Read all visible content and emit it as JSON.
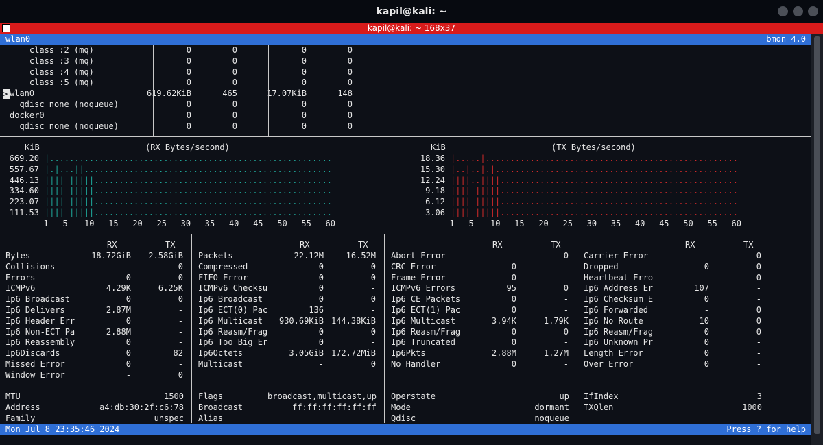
{
  "window": {
    "title": "kapil@kali: ~",
    "tab_title": "kapil@kali: ~ 168x37"
  },
  "header": {
    "interface": "wlan0",
    "app": "bmon 4.0"
  },
  "iface_list": [
    {
      "name": "    class :2 (mq)",
      "rx_bytes": "0",
      "rx_pkts": "0",
      "tx_bytes": "0",
      "tx_pkts": "0"
    },
    {
      "name": "    class :3 (mq)",
      "rx_bytes": "0",
      "rx_pkts": "0",
      "tx_bytes": "0",
      "tx_pkts": "0"
    },
    {
      "name": "    class :4 (mq)",
      "rx_bytes": "0",
      "rx_pkts": "0",
      "tx_bytes": "0",
      "tx_pkts": "0"
    },
    {
      "name": "    class :5 (mq)",
      "rx_bytes": "0",
      "rx_pkts": "0",
      "tx_bytes": "0",
      "tx_pkts": "0"
    },
    {
      "name": "wlan0",
      "rx_bytes": "619.62KiB",
      "rx_pkts": "465",
      "tx_bytes": "17.07KiB",
      "tx_pkts": "148"
    },
    {
      "name": "  qdisc none (noqueue)",
      "rx_bytes": "0",
      "rx_pkts": "0",
      "tx_bytes": "0",
      "tx_pkts": "0"
    },
    {
      "name": "docker0",
      "rx_bytes": "0",
      "rx_pkts": "0",
      "tx_bytes": "0",
      "tx_pkts": "0"
    },
    {
      "name": "  qdisc none (noqueue)",
      "rx_bytes": "0",
      "rx_pkts": "0",
      "tx_bytes": "0",
      "tx_pkts": "0"
    }
  ],
  "cursor_marker": ">",
  "chart_data": [
    {
      "type": "bar",
      "title": "(RX Bytes/second)",
      "unit": "KiB",
      "y_ticks": [
        "669.20",
        "557.67",
        "446.13",
        "334.60",
        "223.07",
        "111.53"
      ],
      "x_ticks": [
        "1",
        "5",
        "10",
        "15",
        "20",
        "25",
        "30",
        "35",
        "40",
        "45",
        "50",
        "55",
        "60"
      ],
      "rows": [
        "|.........................................................",
        "|.|...||..................................................",
        "||||||||||................................................",
        "||||||||||................................................",
        "||||||||||................................................",
        "||||||||||................................................"
      ],
      "color": "#1fa89a"
    },
    {
      "type": "bar",
      "title": "(TX Bytes/second)",
      "unit": "KiB",
      "y_ticks": [
        "18.36",
        "15.30",
        "12.24",
        "9.18",
        "6.12",
        "3.06"
      ],
      "x_ticks": [
        "1",
        "5",
        "10",
        "15",
        "20",
        "25",
        "30",
        "35",
        "40",
        "45",
        "50",
        "55",
        "60"
      ],
      "rows": [
        "|.....|...................................................",
        "|..|..|.|.................................................",
        "||||..||||................................................",
        "||||||||||................................................",
        "||||||||||................................................",
        "||||||||||................................................"
      ],
      "color": "#d22a2a"
    }
  ],
  "stats": {
    "rx_label": "RX",
    "tx_label": "TX",
    "col1": [
      {
        "name": "Bytes",
        "rx": "18.72GiB",
        "tx": "2.58GiB"
      },
      {
        "name": "Collisions",
        "rx": "-",
        "tx": "0"
      },
      {
        "name": "Errors",
        "rx": "0",
        "tx": "0"
      },
      {
        "name": "ICMPv6",
        "rx": "4.29K",
        "tx": "6.25K"
      },
      {
        "name": "Ip6 Broadcast",
        "rx": "0",
        "tx": "0"
      },
      {
        "name": "Ip6 Delivers",
        "rx": "2.87M",
        "tx": "-"
      },
      {
        "name": "Ip6 Header Err",
        "rx": "0",
        "tx": "-"
      },
      {
        "name": "Ip6 Non-ECT Pa",
        "rx": "2.88M",
        "tx": "-"
      },
      {
        "name": "Ip6 Reassembly",
        "rx": "0",
        "tx": "-"
      },
      {
        "name": "Ip6Discards",
        "rx": "0",
        "tx": "82"
      },
      {
        "name": "Missed Error",
        "rx": "0",
        "tx": "-"
      },
      {
        "name": "Window Error",
        "rx": "-",
        "tx": "0"
      }
    ],
    "col2": [
      {
        "name": "Packets",
        "rx": "22.12M",
        "tx": "16.52M"
      },
      {
        "name": "Compressed",
        "rx": "0",
        "tx": "0"
      },
      {
        "name": "FIFO Error",
        "rx": "0",
        "tx": "0"
      },
      {
        "name": "ICMPv6 Checksu",
        "rx": "0",
        "tx": "-"
      },
      {
        "name": "Ip6 Broadcast",
        "rx": "0",
        "tx": "0"
      },
      {
        "name": "Ip6 ECT(0) Pac",
        "rx": "136",
        "tx": "-"
      },
      {
        "name": "Ip6 Multicast",
        "rx": "930.69KiB",
        "tx": "144.38KiB"
      },
      {
        "name": "Ip6 Reasm/Frag",
        "rx": "0",
        "tx": "0"
      },
      {
        "name": "Ip6 Too Big Er",
        "rx": "0",
        "tx": "-"
      },
      {
        "name": "Ip6Octets",
        "rx": "3.05GiB",
        "tx": "172.72MiB"
      },
      {
        "name": "Multicast",
        "rx": "-",
        "tx": "0"
      }
    ],
    "col3": [
      {
        "name": "Abort Error",
        "rx": "-",
        "tx": "0"
      },
      {
        "name": "CRC Error",
        "rx": "0",
        "tx": "-"
      },
      {
        "name": "Frame Error",
        "rx": "0",
        "tx": "-"
      },
      {
        "name": "ICMPv6 Errors",
        "rx": "95",
        "tx": "0"
      },
      {
        "name": "Ip6 CE Packets",
        "rx": "0",
        "tx": "-"
      },
      {
        "name": "Ip6 ECT(1) Pac",
        "rx": "0",
        "tx": "-"
      },
      {
        "name": "Ip6 Multicast",
        "rx": "3.94K",
        "tx": "1.79K"
      },
      {
        "name": "Ip6 Reasm/Frag",
        "rx": "0",
        "tx": "0"
      },
      {
        "name": "Ip6 Truncated",
        "rx": "0",
        "tx": "-"
      },
      {
        "name": "Ip6Pkts",
        "rx": "2.88M",
        "tx": "1.27M"
      },
      {
        "name": "No Handler",
        "rx": "0",
        "tx": "-"
      }
    ],
    "col4": [
      {
        "name": "Carrier Error",
        "rx": "-",
        "tx": "0"
      },
      {
        "name": "Dropped",
        "rx": "0",
        "tx": "0"
      },
      {
        "name": "Heartbeat Erro",
        "rx": "-",
        "tx": "0"
      },
      {
        "name": "Ip6 Address Er",
        "rx": "107",
        "tx": "-"
      },
      {
        "name": "Ip6 Checksum E",
        "rx": "0",
        "tx": "-"
      },
      {
        "name": "Ip6 Forwarded",
        "rx": "-",
        "tx": "0"
      },
      {
        "name": "Ip6 No Route",
        "rx": "10",
        "tx": "0"
      },
      {
        "name": "Ip6 Reasm/Frag",
        "rx": "0",
        "tx": "0"
      },
      {
        "name": "Ip6 Unknown Pr",
        "rx": "0",
        "tx": "-"
      },
      {
        "name": "Length Error",
        "rx": "0",
        "tx": "-"
      },
      {
        "name": "Over Error",
        "rx": "0",
        "tx": "-"
      }
    ]
  },
  "info": {
    "col1": [
      {
        "k": "MTU",
        "v": "1500"
      },
      {
        "k": "Address",
        "v": "a4:db:30:2f:c6:78"
      },
      {
        "k": "Family",
        "v": "unspec"
      }
    ],
    "col2": [
      {
        "k": "Flags",
        "v": "broadcast,multicast,up"
      },
      {
        "k": "Broadcast",
        "v": "ff:ff:ff:ff:ff:ff"
      },
      {
        "k": "Alias",
        "v": ""
      }
    ],
    "col3": [
      {
        "k": "Operstate",
        "v": "up"
      },
      {
        "k": "Mode",
        "v": "dormant"
      },
      {
        "k": "Qdisc",
        "v": "noqueue"
      }
    ],
    "col4": [
      {
        "k": "IfIndex",
        "v": "3"
      },
      {
        "k": "TXQlen",
        "v": "1000"
      }
    ]
  },
  "footer": {
    "datetime": "Mon Jul  8 23:35:46 2024",
    "help": "Press ? for help"
  }
}
